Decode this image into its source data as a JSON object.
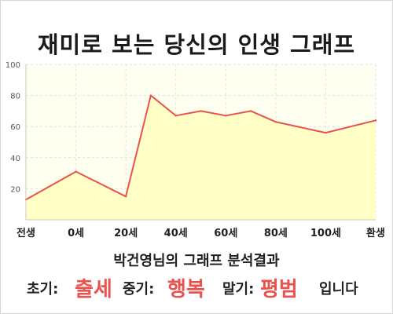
{
  "title": "재미로 보는 당신의 인생 그래프",
  "chart_data": {
    "type": "area",
    "title": "재미로 보는 당신의 인생 그래프",
    "xlabel": "",
    "ylabel": "",
    "x_ticks": [
      "전생",
      "0세",
      "20세",
      "40세",
      "60세",
      "80세",
      "100세",
      "환생"
    ],
    "y_ticks": [
      20,
      40,
      60,
      80,
      100
    ],
    "ylim": [
      0,
      100
    ],
    "points": [
      {
        "x": "전생",
        "y": 13
      },
      {
        "x": "0세",
        "y": 31
      },
      {
        "x": "20세",
        "y": 15
      },
      {
        "x": "30세",
        "y": 80
      },
      {
        "x": "40세",
        "y": 67
      },
      {
        "x": "50세",
        "y": 70
      },
      {
        "x": "60세",
        "y": 67
      },
      {
        "x": "70세",
        "y": 70
      },
      {
        "x": "80세",
        "y": 63
      },
      {
        "x": "100세",
        "y": 56
      },
      {
        "x": "환생",
        "y": 64
      }
    ],
    "grid": true,
    "line_color": "#e8534f",
    "fill_color": "#ffffc6",
    "plot_background": "#fffff0"
  },
  "result": {
    "title": "박건영님의 그래프 분석결과",
    "early_label": "초기:",
    "early_value": "출세",
    "mid_label": "중기:",
    "mid_value": "행복",
    "late_label": "말기:",
    "late_value": "평범",
    "ending": "입니다"
  },
  "colors": {
    "accent": "#e8534f",
    "text": "#222222"
  }
}
